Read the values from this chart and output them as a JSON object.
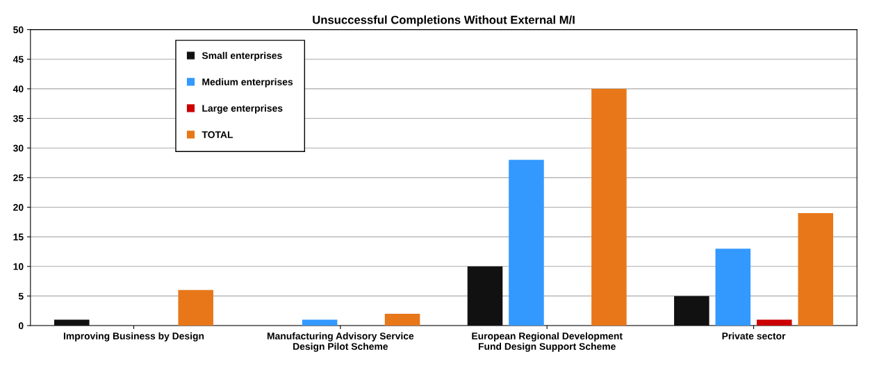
{
  "chart_data": {
    "type": "bar",
    "title": "Unsuccessful Completions Without External M/I",
    "categories": [
      "Improving Business by Design",
      "Manufacturing Advisory Service\nDesign Pilot Scheme",
      "European Regional Development\nFund Design Support Scheme",
      "Private sector"
    ],
    "series": [
      {
        "name": "Small enterprises",
        "color": "#111111",
        "values": [
          1,
          0,
          10,
          5
        ]
      },
      {
        "name": "Medium enterprises",
        "color": "#3399ff",
        "values": [
          0,
          1,
          28,
          13
        ]
      },
      {
        "name": "Large enterprises",
        "color": "#cc0000",
        "values": [
          0,
          0,
          0,
          1
        ]
      },
      {
        "name": "TOTAL",
        "color": "#e8771a",
        "values": [
          6,
          2,
          40,
          19
        ]
      }
    ],
    "ylim": [
      0,
      50
    ],
    "yticks": [
      0,
      5,
      10,
      15,
      20,
      25,
      30,
      35,
      40,
      45,
      50
    ],
    "grid": "y",
    "legend": "top left"
  }
}
